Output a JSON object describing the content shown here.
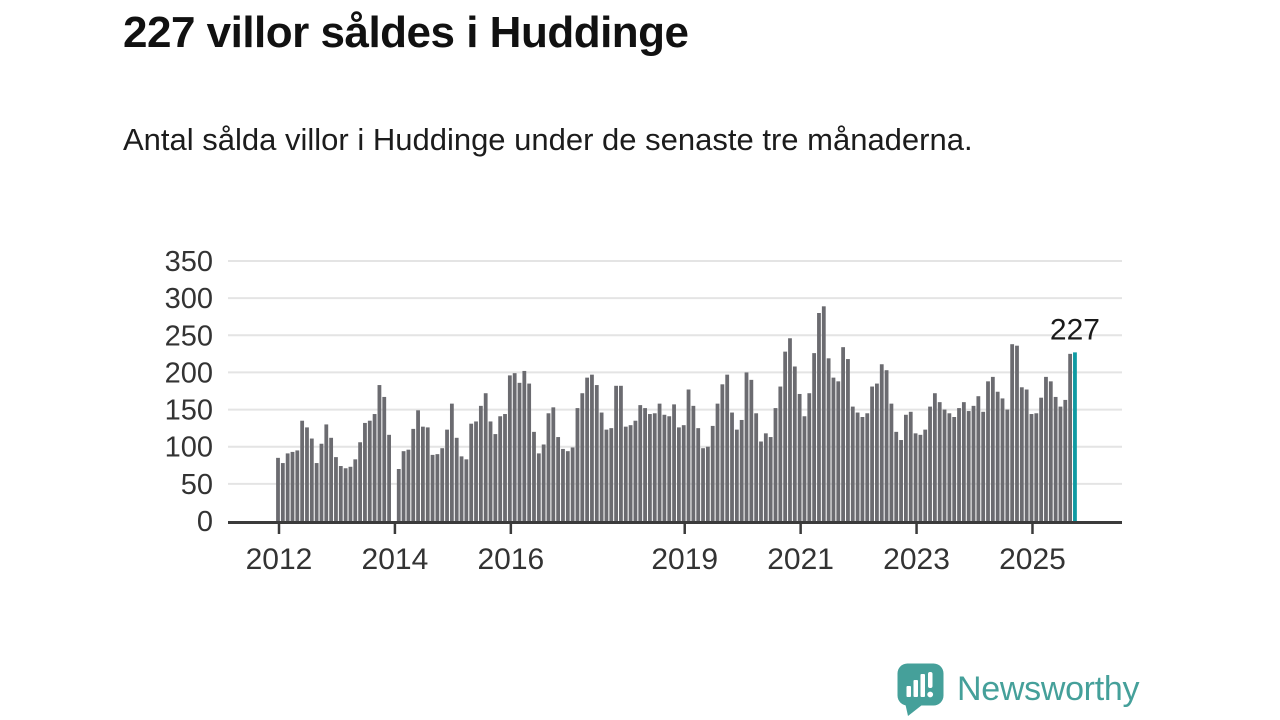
{
  "header": {
    "title": "227 villor såldes i Huddinge",
    "subtitle": "Antal sålda villor i Huddinge under de senaste tre månaderna."
  },
  "footer": {
    "brand": "Newsworthy"
  },
  "colors": {
    "bar": "#6b6b70",
    "highlight": "#0e9aa2",
    "grid": "#e4e4e4",
    "axis": "#3b3b3b",
    "tick_label": "#333333",
    "annotation": "#1a1a1a",
    "logo": "#45a09a",
    "title": "#111111"
  },
  "chart_data": {
    "type": "bar",
    "title": "227 villor såldes i Huddinge",
    "subtitle": "Antal sålda villor i Huddinge under de senaste tre månaderna.",
    "xlabel": "",
    "ylabel": "",
    "ylim": [
      0,
      350
    ],
    "grid": true,
    "legend": "none",
    "unit": "sålda villor (rullande tre månader)",
    "start_month": "2012-01",
    "end_month": "2025-10",
    "categories": [
      "2012-01",
      "2012-02",
      "2012-03",
      "2012-04",
      "2012-05",
      "2012-06",
      "2012-07",
      "2012-08",
      "2012-09",
      "2012-10",
      "2012-11",
      "2012-12",
      "2013-01",
      "2013-02",
      "2013-03",
      "2013-04",
      "2013-05",
      "2013-06",
      "2013-07",
      "2013-08",
      "2013-09",
      "2013-10",
      "2013-11",
      "2013-12",
      "2014-01",
      "2014-02",
      "2014-03",
      "2014-04",
      "2014-05",
      "2014-06",
      "2014-07",
      "2014-08",
      "2014-09",
      "2014-10",
      "2014-11",
      "2014-12",
      "2015-01",
      "2015-02",
      "2015-03",
      "2015-04",
      "2015-05",
      "2015-06",
      "2015-07",
      "2015-08",
      "2015-09",
      "2015-10",
      "2015-11",
      "2015-12",
      "2016-01",
      "2016-02",
      "2016-03",
      "2016-04",
      "2016-05",
      "2016-06",
      "2016-07",
      "2016-08",
      "2016-09",
      "2016-10",
      "2016-11",
      "2016-12",
      "2017-01",
      "2017-02",
      "2017-03",
      "2017-04",
      "2017-05",
      "2017-06",
      "2017-07",
      "2017-08",
      "2017-09",
      "2017-10",
      "2017-11",
      "2017-12",
      "2018-01",
      "2018-02",
      "2018-03",
      "2018-04",
      "2018-05",
      "2018-06",
      "2018-07",
      "2018-08",
      "2018-09",
      "2018-10",
      "2018-11",
      "2018-12",
      "2019-01",
      "2019-02",
      "2019-03",
      "2019-04",
      "2019-05",
      "2019-06",
      "2019-07",
      "2019-08",
      "2019-09",
      "2019-10",
      "2019-11",
      "2019-12",
      "2020-01",
      "2020-02",
      "2020-03",
      "2020-04",
      "2020-05",
      "2020-06",
      "2020-07",
      "2020-08",
      "2020-09",
      "2020-10",
      "2020-11",
      "2020-12",
      "2021-01",
      "2021-02",
      "2021-03",
      "2021-04",
      "2021-05",
      "2021-06",
      "2021-07",
      "2021-08",
      "2021-09",
      "2021-10",
      "2021-11",
      "2021-12",
      "2022-01",
      "2022-02",
      "2022-03",
      "2022-04",
      "2022-05",
      "2022-06",
      "2022-07",
      "2022-08",
      "2022-09",
      "2022-10",
      "2022-11",
      "2022-12",
      "2023-01",
      "2023-02",
      "2023-03",
      "2023-04",
      "2023-05",
      "2023-06",
      "2023-07",
      "2023-08",
      "2023-09",
      "2023-10",
      "2023-11",
      "2023-12",
      "2024-01",
      "2024-02",
      "2024-03",
      "2024-04",
      "2024-05",
      "2024-06",
      "2024-07",
      "2024-08",
      "2024-09",
      "2024-10",
      "2024-11",
      "2024-12",
      "2025-01",
      "2025-02",
      "2025-03",
      "2025-04",
      "2025-05",
      "2025-06",
      "2025-07",
      "2025-08",
      "2025-09",
      "2025-10"
    ],
    "values": [
      85,
      78,
      91,
      93,
      95,
      135,
      126,
      111,
      78,
      104,
      130,
      112,
      86,
      74,
      71,
      73,
      83,
      106,
      132,
      135,
      144,
      183,
      167,
      116,
      0,
      70,
      94,
      96,
      124,
      149,
      127,
      126,
      89,
      90,
      98,
      123,
      158,
      112,
      87,
      83,
      131,
      134,
      155,
      172,
      134,
      117,
      141,
      144,
      196,
      199,
      186,
      202,
      185,
      120,
      91,
      103,
      145,
      153,
      113,
      97,
      94,
      99,
      152,
      172,
      193,
      197,
      183,
      146,
      123,
      125,
      182,
      182,
      127,
      129,
      135,
      156,
      152,
      144,
      145,
      158,
      143,
      141,
      157,
      126,
      129,
      177,
      155,
      125,
      98,
      100,
      128,
      158,
      184,
      197,
      146,
      123,
      136,
      200,
      190,
      145,
      107,
      118,
      113,
      152,
      181,
      228,
      246,
      208,
      171,
      141,
      172,
      226,
      280,
      289,
      219,
      193,
      188,
      234,
      218,
      154,
      146,
      140,
      145,
      181,
      185,
      211,
      203,
      158,
      120,
      109,
      143,
      147,
      118,
      116,
      123,
      154,
      172,
      160,
      150,
      145,
      140,
      152,
      160,
      148,
      155,
      168,
      147,
      188,
      194,
      174,
      165,
      150,
      238,
      236,
      180,
      177,
      144,
      145,
      166,
      194,
      188,
      167,
      154,
      163,
      225,
      227
    ],
    "yticks": [
      0,
      50,
      100,
      150,
      200,
      250,
      300,
      350
    ],
    "xticks": [
      {
        "label": "2012",
        "month_index": 0
      },
      {
        "label": "2014",
        "month_index": 24
      },
      {
        "label": "2016",
        "month_index": 48
      },
      {
        "label": "2019",
        "month_index": 84
      },
      {
        "label": "2021",
        "month_index": 108
      },
      {
        "label": "2023",
        "month_index": 132
      },
      {
        "label": "2025",
        "month_index": 156
      }
    ],
    "highlight": {
      "index": 165,
      "value": 227,
      "label": "227"
    }
  }
}
